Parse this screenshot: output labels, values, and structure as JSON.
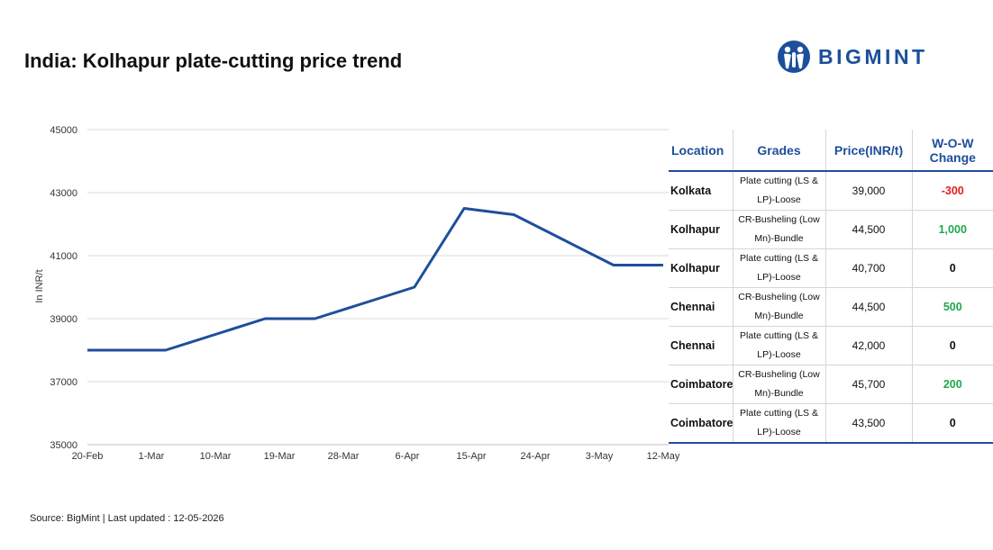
{
  "title": "India: Kolhapur plate-cutting price trend",
  "logo": {
    "text": "BIGMINT",
    "color": "#1b4f9c"
  },
  "chart_data": {
    "type": "line",
    "title": "India: Kolhapur plate-cutting price trend",
    "ylabel": "In INR/t",
    "xlabel": "",
    "ylim": [
      35000,
      45000
    ],
    "yticks": [
      35000,
      37000,
      39000,
      41000,
      43000,
      45000
    ],
    "categories": [
      "20-Feb",
      "1-Mar",
      "10-Mar",
      "19-Mar",
      "28-Mar",
      "6-Apr",
      "15-Apr",
      "24-Apr",
      "3-May",
      "12-May"
    ],
    "points": [
      {
        "date": "20-Feb",
        "value": 38000
      },
      {
        "date": "25-Feb",
        "value": 38000
      },
      {
        "date": "3-Mar",
        "value": 38000
      },
      {
        "date": "10-Mar",
        "value": 38500
      },
      {
        "date": "17-Mar",
        "value": 39000
      },
      {
        "date": "24-Mar",
        "value": 39000
      },
      {
        "date": "31-Mar",
        "value": 39500
      },
      {
        "date": "7-Apr",
        "value": 40000
      },
      {
        "date": "14-Apr",
        "value": 42500
      },
      {
        "date": "21-Apr",
        "value": 42300
      },
      {
        "date": "28-Apr",
        "value": 41500
      },
      {
        "date": "5-May",
        "value": 40700
      },
      {
        "date": "12-May",
        "value": 40700
      }
    ],
    "grid": true,
    "line_color": "#1f4e9b"
  },
  "table": {
    "headers": [
      "Location",
      "Grades",
      "Price(INR/t)",
      "W-O-W Change"
    ],
    "rows": [
      {
        "location": "Kolkata",
        "grade": "Plate cutting (LS & LP)-Loose",
        "price": "39,000",
        "change": "-300",
        "change_color": "#e02020"
      },
      {
        "location": "Kolhapur",
        "grade": "CR-Busheling (Low Mn)-Bundle",
        "price": "44,500",
        "change": "1,000",
        "change_color": "#1fa84a"
      },
      {
        "location": "Kolhapur",
        "grade": "Plate cutting (LS & LP)-Loose",
        "price": "40,700",
        "change": "0",
        "change_color": "#111111"
      },
      {
        "location": "Chennai",
        "grade": "CR-Busheling (Low Mn)-Bundle",
        "price": "44,500",
        "change": "500",
        "change_color": "#1fa84a"
      },
      {
        "location": "Chennai",
        "grade": "Plate cutting (LS & LP)-Loose",
        "price": "42,000",
        "change": "0",
        "change_color": "#111111"
      },
      {
        "location": "Coimbatore",
        "grade": "CR-Busheling (Low Mn)-Bundle",
        "price": "45,700",
        "change": "200",
        "change_color": "#1fa84a"
      },
      {
        "location": "Coimbatore",
        "grade": "Plate cutting (LS & LP)-Loose",
        "price": "43,500",
        "change": "0",
        "change_color": "#111111"
      }
    ]
  },
  "source": "Source: BigMint | Last updated : 12-05-2026"
}
